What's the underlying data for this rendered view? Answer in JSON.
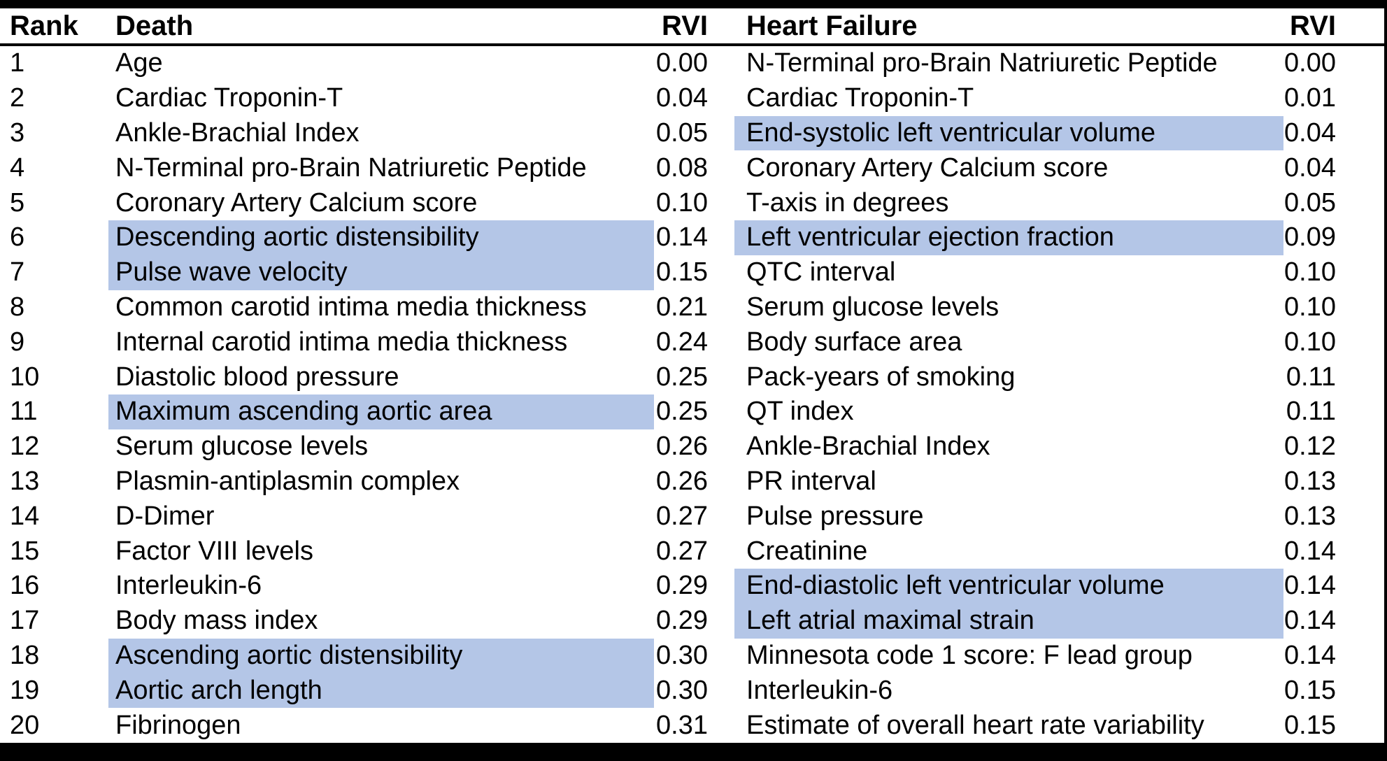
{
  "table": {
    "headers": {
      "rank": "Rank",
      "death": "Death",
      "death_rvi": "RVI",
      "heart_failure": "Heart Failure",
      "heart_failure_rvi": "RVI"
    },
    "highlight_color": "#b4c6e7",
    "rows": [
      {
        "rank": "1",
        "death": "Age",
        "death_rvi": "0.00",
        "death_hl": false,
        "hf": "N-Terminal pro-Brain Natriuretic Peptide",
        "hf_rvi": "0.00",
        "hf_hl": false
      },
      {
        "rank": "2",
        "death": "Cardiac Troponin-T",
        "death_rvi": "0.04",
        "death_hl": false,
        "hf": "Cardiac Troponin-T",
        "hf_rvi": "0.01",
        "hf_hl": false
      },
      {
        "rank": "3",
        "death": "Ankle-Brachial Index",
        "death_rvi": "0.05",
        "death_hl": false,
        "hf": "End-systolic left ventricular volume",
        "hf_rvi": "0.04",
        "hf_hl": true
      },
      {
        "rank": "4",
        "death": "N-Terminal pro-Brain Natriuretic Peptide",
        "death_rvi": "0.08",
        "death_hl": false,
        "hf": "Coronary Artery Calcium score",
        "hf_rvi": "0.04",
        "hf_hl": false
      },
      {
        "rank": "5",
        "death": "Coronary Artery Calcium score",
        "death_rvi": "0.10",
        "death_hl": false,
        "hf": "T-axis in degrees",
        "hf_rvi": "0.05",
        "hf_hl": false
      },
      {
        "rank": "6",
        "death": "Descending aortic distensibility",
        "death_rvi": "0.14",
        "death_hl": true,
        "hf": "Left ventricular ejection fraction",
        "hf_rvi": "0.09",
        "hf_hl": true
      },
      {
        "rank": "7",
        "death": "Pulse wave velocity",
        "death_rvi": "0.15",
        "death_hl": true,
        "hf": "QTC interval",
        "hf_rvi": "0.10",
        "hf_hl": false
      },
      {
        "rank": "8",
        "death": "Common carotid intima media thickness",
        "death_rvi": "0.21",
        "death_hl": false,
        "hf": "Serum glucose levels",
        "hf_rvi": "0.10",
        "hf_hl": false
      },
      {
        "rank": "9",
        "death": "Internal carotid intima media thickness",
        "death_rvi": "0.24",
        "death_hl": false,
        "hf": "Body surface area",
        "hf_rvi": "0.10",
        "hf_hl": false
      },
      {
        "rank": "10",
        "death": "Diastolic blood pressure",
        "death_rvi": "0.25",
        "death_hl": false,
        "hf": "Pack-years of smoking",
        "hf_rvi": "0.11",
        "hf_hl": false
      },
      {
        "rank": "11",
        "death": "Maximum ascending aortic area",
        "death_rvi": "0.25",
        "death_hl": true,
        "hf": "QT index",
        "hf_rvi": "0.11",
        "hf_hl": false
      },
      {
        "rank": "12",
        "death": "Serum glucose levels",
        "death_rvi": "0.26",
        "death_hl": false,
        "hf": "Ankle-Brachial Index",
        "hf_rvi": "0.12",
        "hf_hl": false
      },
      {
        "rank": "13",
        "death": "Plasmin-antiplasmin complex",
        "death_rvi": "0.26",
        "death_hl": false,
        "hf": "PR interval",
        "hf_rvi": "0.13",
        "hf_hl": false
      },
      {
        "rank": "14",
        "death": "D-Dimer",
        "death_rvi": "0.27",
        "death_hl": false,
        "hf": "Pulse pressure",
        "hf_rvi": "0.13",
        "hf_hl": false
      },
      {
        "rank": "15",
        "death": "Factor VIII levels",
        "death_rvi": "0.27",
        "death_hl": false,
        "hf": "Creatinine",
        "hf_rvi": "0.14",
        "hf_hl": false
      },
      {
        "rank": "16",
        "death": "Interleukin-6",
        "death_rvi": "0.29",
        "death_hl": false,
        "hf": "End-diastolic left ventricular volume",
        "hf_rvi": "0.14",
        "hf_hl": true
      },
      {
        "rank": "17",
        "death": "Body mass index",
        "death_rvi": "0.29",
        "death_hl": false,
        "hf": "Left atrial maximal strain",
        "hf_rvi": "0.14",
        "hf_hl": true
      },
      {
        "rank": "18",
        "death": "Ascending aortic distensibility",
        "death_rvi": "0.30",
        "death_hl": true,
        "hf": "Minnesota code 1 score: F lead group",
        "hf_rvi": "0.14",
        "hf_hl": false
      },
      {
        "rank": "19",
        "death": "Aortic arch length",
        "death_rvi": "0.30",
        "death_hl": true,
        "hf": "Interleukin-6",
        "hf_rvi": "0.15",
        "hf_hl": false
      },
      {
        "rank": "20",
        "death": "Fibrinogen",
        "death_rvi": "0.31",
        "death_hl": false,
        "hf": "Estimate of overall heart rate variability",
        "hf_rvi": "0.15",
        "hf_hl": false
      }
    ]
  }
}
